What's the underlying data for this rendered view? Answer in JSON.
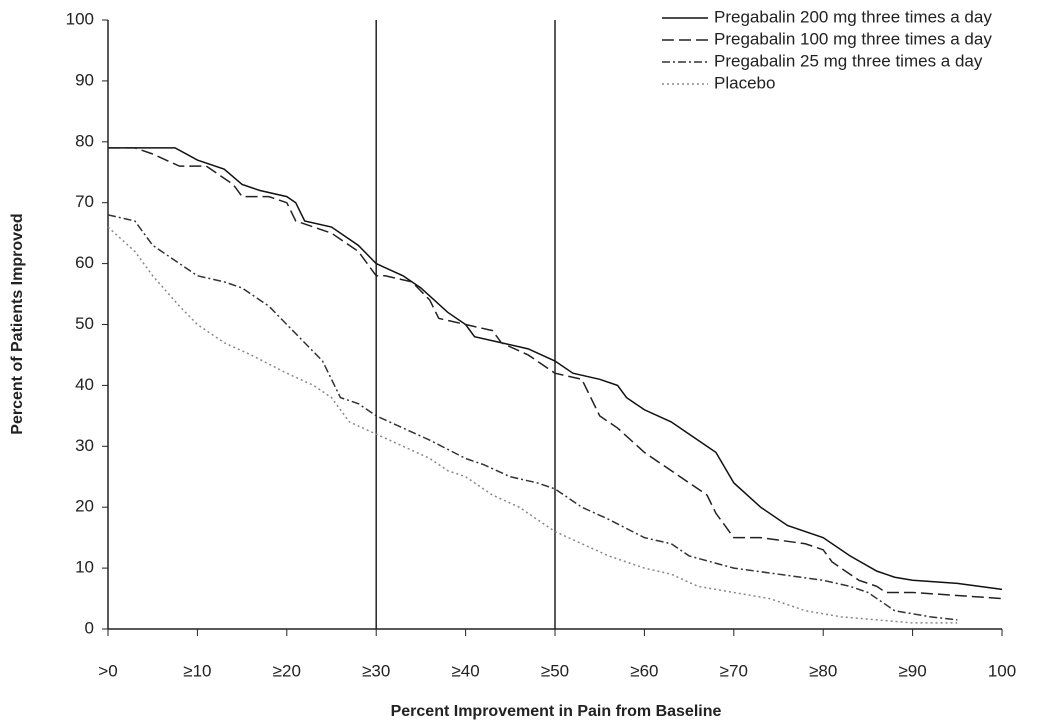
{
  "chart_data": {
    "type": "line",
    "xlabel": "Percent Improvement in Pain from Baseline",
    "ylabel": "Percent of Patients Improved",
    "xlim": [
      0,
      100
    ],
    "ylim": [
      0,
      100
    ],
    "xticks": [
      {
        "value": 0,
        "label": ">0"
      },
      {
        "value": 10,
        "label": "≥10"
      },
      {
        "value": 20,
        "label": "≥20"
      },
      {
        "value": 30,
        "label": "≥30"
      },
      {
        "value": 40,
        "label": "≥40"
      },
      {
        "value": 50,
        "label": "≥50"
      },
      {
        "value": 60,
        "label": "≥60"
      },
      {
        "value": 70,
        "label": "≥70"
      },
      {
        "value": 80,
        "label": "≥80"
      },
      {
        "value": 90,
        "label": "≥90"
      },
      100
    ],
    "yticks": [
      0,
      10,
      20,
      30,
      40,
      50,
      60,
      70,
      80,
      90,
      100
    ],
    "vlines": [
      30,
      50
    ],
    "series": [
      {
        "name": "Pregabalin 200 mg three times a day",
        "color": "#111111",
        "style": "solid",
        "x": [
          0,
          7.5,
          10,
          13,
          15,
          17,
          20,
          21,
          22,
          25,
          28,
          30,
          33,
          35,
          38,
          40,
          41,
          44,
          47,
          50,
          52,
          55,
          57,
          58,
          60,
          63,
          65,
          68,
          70,
          73,
          76,
          80,
          83,
          86,
          88,
          90,
          95,
          100
        ],
        "values": [
          79,
          79,
          77,
          75.5,
          73,
          72,
          71,
          70,
          67,
          66,
          63,
          60,
          58,
          56,
          52,
          50,
          48,
          47,
          46,
          44,
          42,
          41,
          40,
          38,
          36,
          34,
          32,
          29,
          24,
          20,
          17,
          15,
          12,
          9.5,
          8.5,
          8,
          7.5,
          6.5
        ]
      },
      {
        "name": "Pregabalin 100 mg three times a day",
        "color": "#222222",
        "style": "dashed",
        "x": [
          0,
          3,
          5,
          8,
          11,
          14,
          15,
          18,
          20,
          21,
          25,
          28,
          29,
          30,
          31,
          34,
          36,
          37,
          40,
          43,
          44,
          47,
          50,
          53,
          55,
          57,
          60,
          63,
          65,
          67,
          68,
          70,
          73,
          78,
          80,
          81,
          84,
          86,
          87,
          90,
          95,
          100
        ],
        "values": [
          79,
          79,
          78,
          76,
          76,
          73,
          71,
          71,
          70,
          67,
          65,
          62,
          60,
          58,
          58,
          57,
          54,
          51,
          50,
          49,
          47,
          45,
          42,
          41,
          35,
          33,
          29,
          26,
          24,
          22,
          19,
          15,
          15,
          14,
          13,
          11,
          8,
          7,
          6,
          6,
          5.5,
          5
        ]
      },
      {
        "name": "Pregabalin 25 mg three times a day",
        "color": "#333333",
        "style": "dashdot",
        "x": [
          0,
          3,
          5,
          10,
          13,
          15,
          18,
          20,
          22,
          24,
          26,
          28,
          30,
          33,
          36,
          40,
          42,
          45,
          48,
          50,
          53,
          56,
          60,
          63,
          65,
          70,
          75,
          80,
          83,
          85,
          88,
          92,
          95
        ],
        "values": [
          68,
          67,
          63,
          58,
          57,
          56,
          53,
          50,
          47,
          44,
          38,
          37,
          35,
          33,
          31,
          28,
          27,
          25,
          24,
          23,
          20,
          18,
          15,
          14,
          12,
          10,
          9,
          8,
          7,
          6,
          3,
          2,
          1.5
        ]
      },
      {
        "name": "Placebo",
        "color": "#888888",
        "style": "dotted",
        "x": [
          0,
          3,
          5,
          8,
          10,
          13,
          16,
          20,
          23,
          25,
          27,
          30,
          33,
          36,
          38,
          40,
          43,
          46,
          50,
          53,
          56,
          60,
          63,
          66,
          70,
          74,
          78,
          82,
          86,
          90,
          95
        ],
        "values": [
          66,
          62,
          58,
          53,
          50,
          47,
          45,
          42,
          40,
          38,
          34,
          32,
          30,
          28,
          26,
          25,
          22,
          20,
          16,
          14,
          12,
          10,
          9,
          7,
          6,
          5,
          3,
          2,
          1.5,
          1,
          1
        ]
      }
    ]
  }
}
